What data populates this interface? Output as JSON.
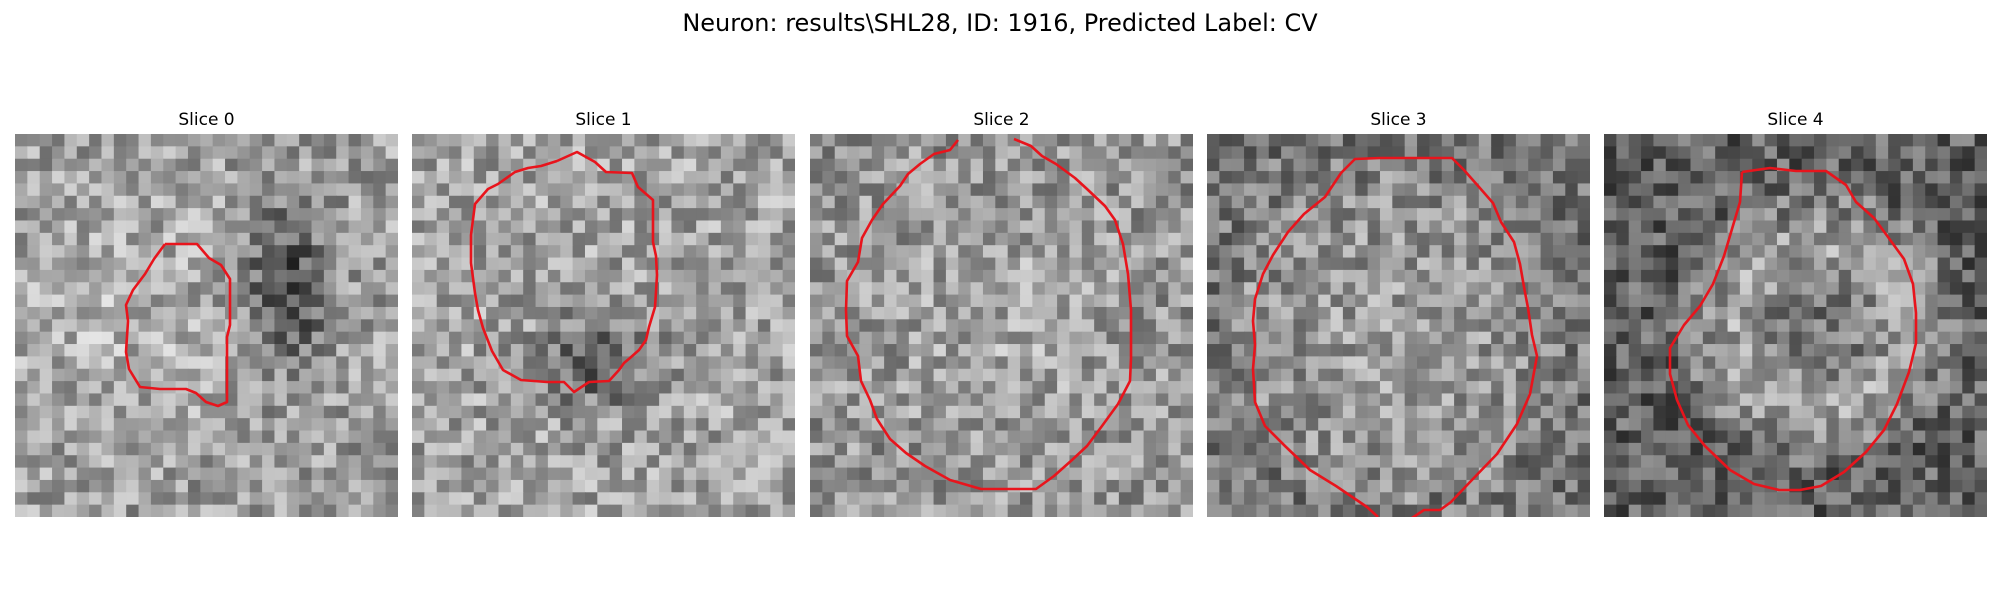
{
  "figure": {
    "title": "Neuron: results\\SHL28, ID: 1916, Predicted Label: CV"
  },
  "panels": [
    {
      "title": "Slice 0"
    },
    {
      "title": "Slice 1"
    },
    {
      "title": "Slice 2"
    },
    {
      "title": "Slice 3"
    },
    {
      "title": "Slice 4"
    }
  ],
  "colors": {
    "contour": "#e8141c",
    "background": "#ffffff"
  }
}
